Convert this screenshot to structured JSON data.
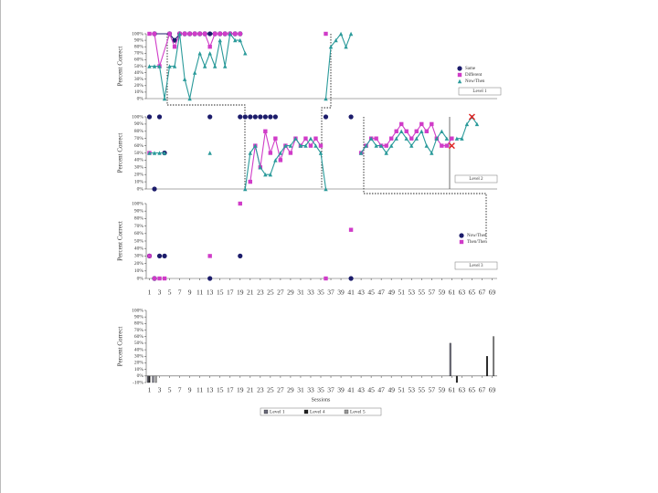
{
  "chart_data": [
    {
      "type": "line",
      "ylabel": "Percent Correct",
      "xlim": [
        0,
        70
      ],
      "ylim": [
        0,
        100
      ],
      "yticks": [
        {
          "value": 0,
          "label": "0%"
        },
        {
          "value": 10,
          "label": "10%"
        },
        {
          "value": 20,
          "label": "20%"
        },
        {
          "value": 30,
          "label": "30%"
        },
        {
          "value": 40,
          "label": "40%"
        },
        {
          "value": 50,
          "label": "50%"
        },
        {
          "value": 60,
          "label": "60%"
        },
        {
          "value": 70,
          "label": "70%"
        },
        {
          "value": 80,
          "label": "80%"
        },
        {
          "value": 90,
          "label": "90%"
        },
        {
          "value": 100,
          "label": "100%"
        }
      ],
      "legend": true,
      "note": "Level 1",
      "series": [
        {
          "name": "Same",
          "color": "#1c1c6b",
          "marker": "circle",
          "connect": true,
          "x": [
            2,
            5,
            6,
            7,
            8,
            9,
            10,
            11,
            12,
            13,
            14,
            15,
            16,
            17,
            18,
            19
          ],
          "values": [
            100,
            100,
            90,
            100,
            100,
            100,
            100,
            100,
            100,
            100,
            100,
            100,
            100,
            100,
            100,
            100
          ]
        },
        {
          "name": "Different",
          "color": "#d03cc8",
          "marker": "square",
          "connect": true,
          "x": [
            1,
            2,
            3,
            5,
            6,
            7,
            8,
            9,
            10,
            11,
            12,
            13,
            14,
            15,
            16,
            17,
            18,
            19,
            27,
            36
          ],
          "values": [
            100,
            100,
            50,
            100,
            80,
            100,
            100,
            100,
            100,
            100,
            100,
            80,
            100,
            100,
            100,
            100,
            100,
            100,
            null,
            100
          ]
        },
        {
          "name": "Now/Then",
          "color": "#2a9a9a",
          "marker": "triangle",
          "connect": true,
          "x": [
            1,
            2,
            3,
            4,
            5,
            6,
            7,
            8,
            9,
            10,
            11,
            12,
            13,
            14,
            15,
            16,
            17,
            18,
            19,
            20,
            27,
            36,
            37,
            38,
            39,
            40,
            41
          ],
          "values": [
            50,
            50,
            50,
            0,
            50,
            50,
            100,
            30,
            0,
            40,
            70,
            50,
            70,
            50,
            90,
            50,
            100,
            90,
            90,
            70,
            null,
            0,
            80,
            90,
            100,
            80,
            100
          ]
        }
      ]
    },
    {
      "type": "line",
      "ylabel": "Percent Correct",
      "xlim": [
        0,
        70
      ],
      "ylim": [
        0,
        100
      ],
      "yticks": [
        {
          "value": 0,
          "label": "0%"
        },
        {
          "value": 10,
          "label": "10%"
        },
        {
          "value": 20,
          "label": "20%"
        },
        {
          "value": 30,
          "label": "30%"
        },
        {
          "value": 40,
          "label": "40%"
        },
        {
          "value": 50,
          "label": "50%"
        },
        {
          "value": 60,
          "label": "60%"
        },
        {
          "value": 70,
          "label": "70%"
        },
        {
          "value": 80,
          "label": "80%"
        },
        {
          "value": 90,
          "label": "90%"
        },
        {
          "value": 100,
          "label": "100%"
        }
      ],
      "legend": false,
      "note": "Level 2",
      "series": [
        {
          "name": "Same",
          "color": "#1c1c6b",
          "marker": "circle",
          "connect": false,
          "x": [
            1,
            2,
            3,
            4,
            13,
            19,
            20,
            21,
            22,
            23,
            24,
            25,
            26,
            36,
            41
          ],
          "values": [
            100,
            0,
            100,
            50,
            100,
            100,
            100,
            100,
            100,
            100,
            100,
            100,
            100,
            100,
            100
          ]
        },
        {
          "name": "Different",
          "color": "#d03cc8",
          "marker": "square",
          "connect": true,
          "x": [
            1,
            10,
            21,
            22,
            23,
            24,
            25,
            26,
            27,
            28,
            29,
            30,
            31,
            32,
            33,
            34,
            35,
            38,
            43,
            44,
            45,
            46,
            47,
            48,
            49,
            50,
            51,
            52,
            53,
            54,
            55,
            56,
            57,
            58,
            59,
            60,
            61
          ],
          "values": [
            50,
            null,
            10,
            60,
            30,
            80,
            50,
            70,
            40,
            60,
            50,
            70,
            60,
            70,
            60,
            70,
            60,
            null,
            50,
            60,
            70,
            70,
            60,
            60,
            70,
            80,
            90,
            80,
            70,
            80,
            90,
            80,
            90,
            70,
            60,
            60,
            70
          ]
        },
        {
          "name": "Now/Then",
          "color": "#2a9a9a",
          "marker": "triangle",
          "connect": true,
          "x": [
            1,
            2,
            3,
            4,
            8,
            13,
            16,
            20,
            21,
            22,
            23,
            24,
            25,
            26,
            27,
            28,
            29,
            30,
            31,
            32,
            33,
            34,
            35,
            36,
            40,
            43,
            44,
            45,
            46,
            47,
            48,
            49,
            50,
            51,
            52,
            53,
            54,
            55,
            56,
            57,
            58,
            59,
            60,
            61,
            62,
            63,
            64,
            65,
            66
          ],
          "values": [
            50,
            50,
            50,
            50,
            null,
            50,
            null,
            0,
            50,
            60,
            30,
            20,
            20,
            40,
            50,
            60,
            60,
            70,
            60,
            60,
            70,
            60,
            50,
            0,
            null,
            50,
            60,
            70,
            60,
            60,
            50,
            60,
            70,
            80,
            70,
            60,
            70,
            80,
            60,
            50,
            70,
            80,
            70,
            null,
            70,
            70,
            90,
            100,
            90
          ]
        },
        {
          "color": "#e02020",
          "marker": "x",
          "connect": false,
          "x": [
            61,
            65
          ],
          "values": [
            60,
            100
          ]
        }
      ]
    },
    {
      "type": "line",
      "ylabel": "Percent Correct",
      "xlim": [
        0,
        70
      ],
      "ylim": [
        0,
        100
      ],
      "yticks": [
        {
          "value": 0,
          "label": "0%"
        },
        {
          "value": 10,
          "label": "10%"
        },
        {
          "value": 20,
          "label": "20%"
        },
        {
          "value": 30,
          "label": "30%"
        },
        {
          "value": 40,
          "label": "40%"
        },
        {
          "value": 50,
          "label": "50%"
        },
        {
          "value": 60,
          "label": "60%"
        },
        {
          "value": 70,
          "label": "70%"
        },
        {
          "value": 80,
          "label": "80%"
        },
        {
          "value": 90,
          "label": "90%"
        },
        {
          "value": 100,
          "label": "100%"
        }
      ],
      "xticks": [
        1,
        3,
        5,
        7,
        9,
        11,
        13,
        15,
        17,
        19,
        21,
        23,
        25,
        27,
        29,
        31,
        33,
        35,
        37,
        39,
        41,
        43,
        45,
        47,
        49,
        51,
        53,
        55,
        57,
        59,
        61,
        63,
        65,
        67,
        69
      ],
      "legend": true,
      "note": "Level 3",
      "series": [
        {
          "name": "Now/Then",
          "color": "#1c1c6b",
          "marker": "circle",
          "connect": false,
          "x": [
            1,
            2,
            3,
            4,
            13,
            19,
            41
          ],
          "values": [
            30,
            0,
            30,
            30,
            0,
            30,
            0
          ]
        },
        {
          "name": "Then/Then",
          "color": "#d03cc8",
          "marker": "square",
          "connect": false,
          "x": [
            1,
            2,
            3,
            4,
            13,
            19,
            36,
            41
          ],
          "values": [
            30,
            0,
            0,
            0,
            30,
            100,
            0,
            65
          ]
        }
      ]
    },
    {
      "type": "bar",
      "ylabel": "Percent Correct",
      "xlabel": "Sessions",
      "xlim": [
        0,
        70
      ],
      "ylim": [
        -10,
        100
      ],
      "yticks": [
        {
          "value": -10,
          "label": "-10%"
        },
        {
          "value": 0,
          "label": "0%"
        },
        {
          "value": 10,
          "label": "10%"
        },
        {
          "value": 20,
          "label": "20%"
        },
        {
          "value": 30,
          "label": "30%"
        },
        {
          "value": 40,
          "label": "40%"
        },
        {
          "value": 50,
          "label": "50%"
        },
        {
          "value": 60,
          "label": "60%"
        },
        {
          "value": 70,
          "label": "70%"
        },
        {
          "value": 80,
          "label": "80%"
        },
        {
          "value": 90,
          "label": "90%"
        },
        {
          "value": 100,
          "label": "100%"
        }
      ],
      "xticks": [
        1,
        3,
        5,
        7,
        9,
        11,
        13,
        15,
        17,
        19,
        21,
        23,
        25,
        27,
        29,
        31,
        33,
        35,
        37,
        39,
        41,
        43,
        45,
        47,
        49,
        51,
        53,
        55,
        57,
        59,
        61,
        63,
        65,
        67,
        69
      ],
      "legend": true,
      "series": [
        {
          "name": "Level 1",
          "color": "#6a6a7a",
          "x": [
            1,
            2,
            61
          ],
          "values": [
            -10,
            -10,
            50
          ]
        },
        {
          "name": "Level 4",
          "color": "#202020",
          "x": [
            1,
            62,
            68
          ],
          "values": [
            -10,
            -10,
            30
          ]
        },
        {
          "name": "Level 5",
          "color": "#9a9a9a",
          "x": [
            2,
            69
          ],
          "values": [
            -10,
            60
          ]
        }
      ]
    }
  ]
}
